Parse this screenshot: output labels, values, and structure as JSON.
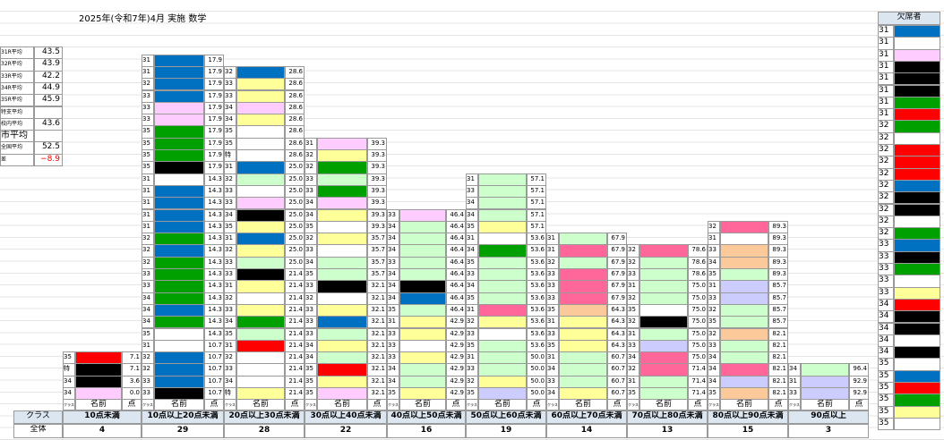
{
  "title": "2025年(令和7年)4月 実施 数学",
  "summary": [
    [
      "31R平均",
      "43.5"
    ],
    [
      "32R平均",
      "43.9"
    ],
    [
      "33R平均",
      "42.2"
    ],
    [
      "34R平均",
      "44.9"
    ],
    [
      "35R平均",
      "45.9"
    ],
    [
      "特支平均",
      ""
    ],
    [
      "校内平均",
      "43.6"
    ],
    [
      "市平均",
      ""
    ],
    [
      "全国平均",
      "52.5"
    ],
    [
      "差",
      "−8.9"
    ]
  ],
  "header": {
    "class": "クラス",
    "name": "名前",
    "score": "点",
    "total": "全体",
    "absent": "欠席者"
  },
  "bins": [
    {
      "label": "10点未満",
      "count": 4,
      "rows": [
        [
          "35",
          "red",
          "7.1"
        ],
        [
          "特",
          "black",
          "7.1"
        ],
        [
          "34",
          "black",
          "3.6"
        ],
        [
          "34",
          "pink",
          "0.0"
        ]
      ]
    },
    {
      "label": "10点以上20点未満",
      "count": 29,
      "rows": [
        [
          "31",
          "blue",
          "17.9"
        ],
        [
          "31",
          "blue",
          "17.9"
        ],
        [
          "32",
          "blue",
          "17.9"
        ],
        [
          "33",
          "blue",
          "17.9"
        ],
        [
          "33",
          "pink",
          "17.9"
        ],
        [
          "33",
          "pink",
          "17.9"
        ],
        [
          "35",
          "green",
          "17.9"
        ],
        [
          "35",
          "green",
          "17.9"
        ],
        [
          "35",
          "green",
          "17.9"
        ],
        [
          "35",
          "black",
          "17.9"
        ],
        [
          "31",
          "white",
          "14.3"
        ],
        [
          "31",
          "blue",
          "14.3"
        ],
        [
          "31",
          "blue",
          "14.3"
        ],
        [
          "31",
          "blue",
          "14.3"
        ],
        [
          "31",
          "blue",
          "14.3"
        ],
        [
          "32",
          "green",
          "14.3"
        ],
        [
          "32",
          "blue",
          "14.3"
        ],
        [
          "32",
          "green",
          "14.3"
        ],
        [
          "33",
          "green",
          "14.3"
        ],
        [
          "33",
          "green",
          "14.3"
        ],
        [
          "34",
          "green",
          "14.3"
        ],
        [
          "34",
          "blue",
          "14.3"
        ],
        [
          "34",
          "green",
          "14.3"
        ],
        [
          "35",
          "white",
          "14.3"
        ],
        [
          "31",
          "white",
          "10.7"
        ],
        [
          "32",
          "blue",
          "10.7"
        ],
        [
          "32",
          "blue",
          "10.7"
        ],
        [
          "33",
          "blue",
          "10.7"
        ],
        [
          "33",
          "black",
          "10.7"
        ]
      ]
    },
    {
      "label": "20点以上30点未満",
      "count": 28,
      "rows": [
        [
          "32",
          "blue",
          "28.6"
        ],
        [
          "33",
          "yellow",
          "28.6"
        ],
        [
          "33",
          "yellow",
          "28.6"
        ],
        [
          "34",
          "pink",
          "28.6"
        ],
        [
          "34",
          "yellow",
          "28.6"
        ],
        [
          "35",
          "white",
          "28.6"
        ],
        [
          "35",
          "white",
          "28.6"
        ],
        [
          "特",
          "white",
          "28.6"
        ],
        [
          "31",
          "blue",
          "25.0"
        ],
        [
          "32",
          "mint",
          "25.0"
        ],
        [
          "33",
          "white",
          "25.0"
        ],
        [
          "33",
          "pink",
          "25.0"
        ],
        [
          "34",
          "black",
          "25.0"
        ],
        [
          "35",
          "yellow",
          "25.0"
        ],
        [
          "31",
          "blue",
          "25.0"
        ],
        [
          "32",
          "yellow",
          "25.0"
        ],
        [
          "33",
          "mint",
          "25.0"
        ],
        [
          "33",
          "black",
          "21.4"
        ],
        [
          "31",
          "yellow",
          "21.4"
        ],
        [
          "32",
          "white",
          "21.4"
        ],
        [
          "33",
          "yellow",
          "21.4"
        ],
        [
          "34",
          "green",
          "21.4"
        ],
        [
          "35",
          "mint",
          "21.4"
        ],
        [
          "31",
          "red",
          "21.4"
        ],
        [
          "32",
          "white",
          "21.4"
        ],
        [
          "33",
          "white",
          "21.4"
        ],
        [
          "34",
          "white",
          "21.4"
        ],
        [
          "特",
          "yellow",
          "21.4"
        ]
      ]
    },
    {
      "label": "30点以上40点未満",
      "count": 22,
      "rows": [
        [
          "31",
          "pink",
          "39.3"
        ],
        [
          "32",
          "yellow",
          "39.3"
        ],
        [
          "32",
          "green",
          "39.3"
        ],
        [
          "33",
          "mint",
          "39.3"
        ],
        [
          "33",
          "green",
          "39.3"
        ],
        [
          "34",
          "pink",
          "39.3"
        ],
        [
          "34",
          "yellow",
          "39.3"
        ],
        [
          "35",
          "white",
          "39.3"
        ],
        [
          "32",
          "yellow",
          "35.7"
        ],
        [
          "33",
          "white",
          "35.7"
        ],
        [
          "34",
          "mint",
          "35.7"
        ],
        [
          "35",
          "mint",
          "35.7"
        ],
        [
          "33",
          "black",
          "32.1"
        ],
        [
          "32",
          "white",
          "32.1"
        ],
        [
          "33",
          "yellow",
          "32.1"
        ],
        [
          "33",
          "blue",
          "32.1"
        ],
        [
          "33",
          "mint",
          "32.1"
        ],
        [
          "34",
          "yellow",
          "32.1"
        ],
        [
          "34",
          "mint",
          "32.1"
        ],
        [
          "35",
          "red",
          "32.1"
        ],
        [
          "35",
          "yellow",
          "32.1"
        ],
        [
          "35",
          "pink",
          "32.1"
        ]
      ]
    },
    {
      "label": "40点以上50点未満",
      "count": 16,
      "rows": [
        [
          "33",
          "pink",
          "46.4"
        ],
        [
          "34",
          "mint",
          "46.4"
        ],
        [
          "34",
          "mint",
          "46.4"
        ],
        [
          "34",
          "mint",
          "46.4"
        ],
        [
          "33",
          "mint",
          "46.4"
        ],
        [
          "34",
          "mint",
          "46.4"
        ],
        [
          "34",
          "black",
          "46.4"
        ],
        [
          "34",
          "blue",
          "46.4"
        ],
        [
          "35",
          "mint",
          "46.4"
        ],
        [
          "31",
          "yellow",
          "42.9"
        ],
        [
          "33",
          "yellow",
          "42.9"
        ],
        [
          "33",
          "white",
          "42.9"
        ],
        [
          "33",
          "yellow",
          "42.9"
        ],
        [
          "34",
          "mint",
          "42.9"
        ],
        [
          "34",
          "mint",
          "42.9"
        ],
        [
          "35",
          "yellow",
          "42.9"
        ]
      ]
    },
    {
      "label": "50点以上60点未満",
      "count": 19,
      "rows": [
        [
          "31",
          "mint",
          "57.1"
        ],
        [
          "33",
          "mint",
          "57.1"
        ],
        [
          "34",
          "mint",
          "57.1"
        ],
        [
          "34",
          "mint",
          "57.1"
        ],
        [
          "35",
          "yellow",
          "57.1"
        ],
        [
          "31",
          "white",
          "53.6"
        ],
        [
          "34",
          "green",
          "53.6"
        ],
        [
          "35",
          "mint",
          "53.6"
        ],
        [
          "33",
          "mint",
          "53.6"
        ],
        [
          "34",
          "mint",
          "53.6"
        ],
        [
          "35",
          "mint",
          "53.6"
        ],
        [
          "31",
          "rose",
          "53.6"
        ],
        [
          "32",
          "yellow",
          "53.6"
        ],
        [
          "33",
          "white",
          "53.6"
        ],
        [
          "35",
          "mint",
          "53.6"
        ],
        [
          "31",
          "mint",
          "50.0"
        ],
        [
          "33",
          "mint",
          "50.0"
        ],
        [
          "32",
          "yellow",
          "50.0"
        ],
        [
          "35",
          "lavender",
          "50.0"
        ]
      ]
    },
    {
      "label": "60点以上70点未満",
      "count": 14,
      "rows": [
        [
          "31",
          "mint",
          "67.9"
        ],
        [
          "31",
          "rose",
          "67.9"
        ],
        [
          "32",
          "mint",
          "67.9"
        ],
        [
          "33",
          "rose",
          "67.9"
        ],
        [
          "33",
          "rose",
          "67.9"
        ],
        [
          "33",
          "rose",
          "67.9"
        ],
        [
          "35",
          "peach",
          "64.3"
        ],
        [
          "31",
          "yellow",
          "64.3"
        ],
        [
          "33",
          "yellow",
          "64.3"
        ],
        [
          "35",
          "yellow",
          "64.3"
        ],
        [
          "31",
          "mint",
          "60.7"
        ],
        [
          "34",
          "mint",
          "60.7"
        ],
        [
          "33",
          "mint",
          "60.7"
        ],
        [
          "34",
          "yellow",
          "60.7"
        ]
      ]
    },
    {
      "label": "70点以上80点未満",
      "count": 13,
      "rows": [
        [
          "32",
          "rose",
          "78.6"
        ],
        [
          "32",
          "mint",
          "78.6"
        ],
        [
          "33",
          "mint",
          "78.6"
        ],
        [
          "31",
          "mint",
          "75.0"
        ],
        [
          "32",
          "mint",
          "75.0"
        ],
        [
          "35",
          "white",
          "75.0"
        ],
        [
          "32",
          "black",
          "75.0"
        ],
        [
          "31",
          "mint",
          "75.0"
        ],
        [
          "33",
          "lavender",
          "75.0"
        ],
        [
          "34",
          "rose",
          "75.0"
        ],
        [
          "32",
          "rose",
          "71.4"
        ],
        [
          "31",
          "mint",
          "71.4"
        ],
        [
          "35",
          "mint",
          "71.4"
        ]
      ]
    },
    {
      "label": "80点以上90点未満",
      "count": 15,
      "rows": [
        [
          "32",
          "rose",
          "89.3"
        ],
        [
          "31",
          "white",
          "89.3"
        ],
        [
          "33",
          "peach",
          "89.3"
        ],
        [
          "34",
          "peach",
          "89.3"
        ],
        [
          "35",
          "mint",
          "89.3"
        ],
        [
          "31",
          "lavender",
          "85.7"
        ],
        [
          "33",
          "lavender",
          "85.7"
        ],
        [
          "32",
          "mint",
          "85.7"
        ],
        [
          "35",
          "mint",
          "85.7"
        ],
        [
          "32",
          "peach",
          "82.1"
        ],
        [
          "33",
          "mint",
          "82.1"
        ],
        [
          "34",
          "mint",
          "82.1"
        ],
        [
          "34",
          "rose",
          "82.1"
        ],
        [
          "34",
          "lavender",
          "82.1"
        ],
        [
          "35",
          "peach",
          "82.1"
        ]
      ]
    },
    {
      "label": "90点以上",
      "count": 3,
      "rows": [
        [
          "34",
          "mint",
          "96.4"
        ],
        [
          "31",
          "lavender",
          "92.9"
        ],
        [
          "33",
          "lavender",
          "92.9"
        ]
      ]
    }
  ],
  "absent": [
    [
      "31",
      "blue"
    ],
    [
      "31",
      "white"
    ],
    [
      "31",
      "pink"
    ],
    [
      "31",
      "black"
    ],
    [
      "31",
      "black"
    ],
    [
      "31",
      "black"
    ],
    [
      "31",
      "green"
    ],
    [
      "31",
      "red"
    ],
    [
      "32",
      "green"
    ],
    [
      "32",
      "white"
    ],
    [
      "32",
      "red"
    ],
    [
      "32",
      "red"
    ],
    [
      "32",
      "red"
    ],
    [
      "32",
      "blue"
    ],
    [
      "32",
      "black"
    ],
    [
      "32",
      "black"
    ],
    [
      "32",
      "white"
    ],
    [
      "32",
      "green"
    ],
    [
      "33",
      "blue"
    ],
    [
      "33",
      "black"
    ],
    [
      "33",
      "green"
    ],
    [
      "33",
      "white"
    ],
    [
      "33",
      "yellow"
    ],
    [
      "34",
      "red"
    ],
    [
      "34",
      "black"
    ],
    [
      "34",
      "black"
    ],
    [
      "34",
      "white"
    ],
    [
      "34",
      "black"
    ],
    [
      "35",
      "white"
    ],
    [
      "35",
      "blue"
    ],
    [
      "35",
      "red"
    ],
    [
      "35",
      "green"
    ],
    [
      "35",
      "yellow"
    ],
    [
      "35",
      "white"
    ]
  ]
}
